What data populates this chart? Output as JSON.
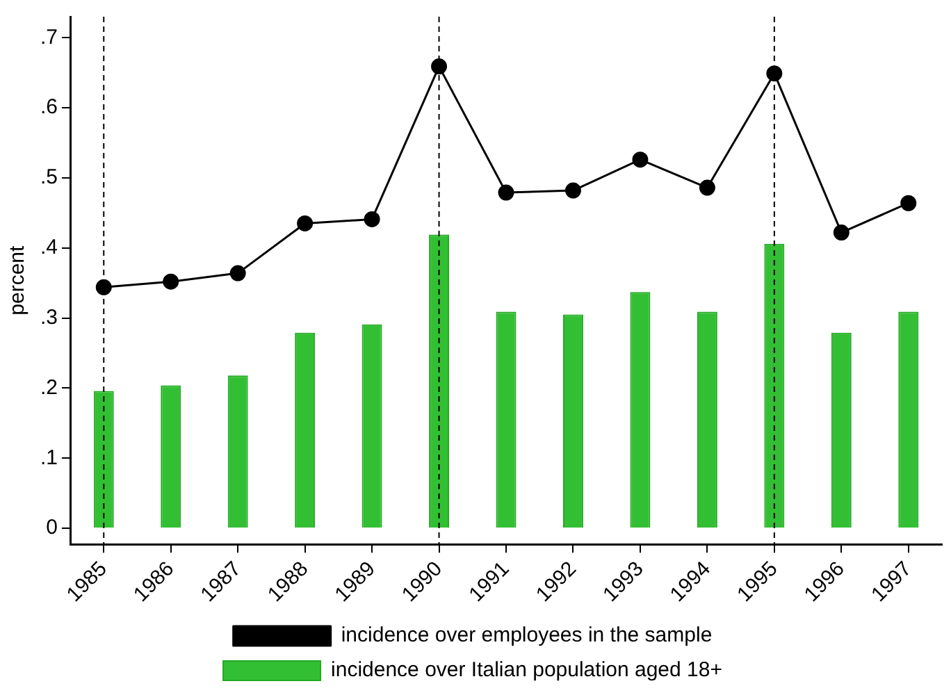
{
  "chart_data": {
    "type": "bar",
    "ylabel": "percent",
    "categories": [
      "1985",
      "1986",
      "1987",
      "1988",
      "1989",
      "1990",
      "1991",
      "1992",
      "1993",
      "1994",
      "1995",
      "1996",
      "1997"
    ],
    "series": [
      {
        "name": "incidence over employees in the sample",
        "type": "line",
        "color": "#000000",
        "marker": "circle",
        "values": [
          0.344,
          0.352,
          0.364,
          0.435,
          0.441,
          0.659,
          0.479,
          0.482,
          0.526,
          0.486,
          0.649,
          0.422,
          0.464
        ]
      },
      {
        "name": "incidence over Italian population aged 18+",
        "color": "#33bf33",
        "values": [
          0.196,
          0.204,
          0.218,
          0.279,
          0.291,
          0.419,
          0.309,
          0.305,
          0.337,
          0.309,
          0.406,
          0.279,
          0.309
        ]
      }
    ],
    "ylim": [
      -0.023,
      0.73
    ],
    "yticks": [
      {
        "value": 0,
        "label": "0"
      },
      {
        "value": 0.1,
        "label": ".1"
      },
      {
        "value": 0.2,
        "label": ".2"
      },
      {
        "value": 0.3,
        "label": ".3"
      },
      {
        "value": 0.4,
        "label": ".4"
      },
      {
        "value": 0.5,
        "label": ".5"
      },
      {
        "value": 0.6,
        "label": ".6"
      },
      {
        "value": 0.7,
        "label": ".7"
      }
    ],
    "ref_lines": [
      {
        "axis": "x",
        "value": "1985",
        "line_style": "dashed",
        "color": "#000000"
      },
      {
        "axis": "x",
        "value": "1990",
        "line_style": "dashed",
        "color": "#000000"
      },
      {
        "axis": "x",
        "value": "1995",
        "line_style": "dashed",
        "color": "#000000"
      }
    ],
    "grid": false,
    "legend": "bottom"
  }
}
